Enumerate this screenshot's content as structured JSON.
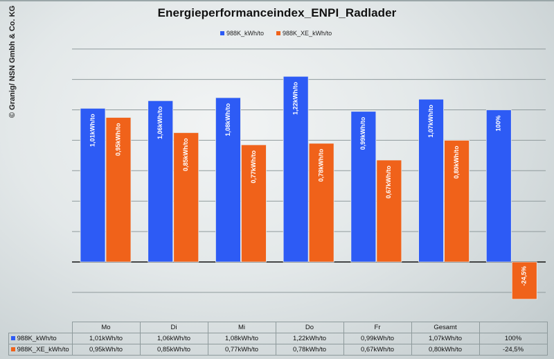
{
  "copyright": "© Granig/ NSN Gmbh & Co. KG",
  "colors": {
    "series1": "#2d5bf5",
    "series2": "#f0621a"
  },
  "chart_data": {
    "type": "bar",
    "title": "Energieperformanceindex_ENPI_Radlader",
    "xlabel": "",
    "ylabel": "",
    "ylim": [
      -0.2,
      1.4
    ],
    "grid": true,
    "legend_position": "top-center",
    "categories": [
      "Mo",
      "Di",
      "Mi",
      "Do",
      "Fr",
      "Gesamt",
      ""
    ],
    "series": [
      {
        "name": "988K_kWh/to",
        "values": [
          1.01,
          1.06,
          1.08,
          1.22,
          0.99,
          1.07,
          1.0
        ],
        "labels": [
          "1,01kWh/to",
          "1,06kWh/to",
          "1,08kWh/to",
          "1,22kWh/to",
          "0,99kWh/to",
          "1,07kWh/to",
          "100%"
        ]
      },
      {
        "name": "988K_XE_kWh/to",
        "values": [
          0.95,
          0.85,
          0.77,
          0.78,
          0.67,
          0.8,
          -0.245
        ],
        "labels": [
          "0,95kWh/to",
          "0,85kWh/to",
          "0,77kWh/to",
          "0,78kWh/to",
          "0,67kWh/to",
          "0,80kWh/to",
          "-24,5%"
        ]
      }
    ],
    "data_table": {
      "headers": [
        "Mo",
        "Di",
        "Mi",
        "Do",
        "Fr",
        "Gesamt",
        ""
      ],
      "rows": [
        {
          "label": "988K_kWh/to",
          "cells": [
            "1,01kWh/to",
            "1,06kWh/to",
            "1,08kWh/to",
            "1,22kWh/to",
            "0,99kWh/to",
            "1,07kWh/to",
            "100%"
          ]
        },
        {
          "label": "988K_XE_kWh/to",
          "cells": [
            "0,95kWh/to",
            "0,85kWh/to",
            "0,77kWh/to",
            "0,78kWh/to",
            "0,67kWh/to",
            "0,80kWh/to",
            "-24,5%"
          ]
        }
      ]
    }
  }
}
